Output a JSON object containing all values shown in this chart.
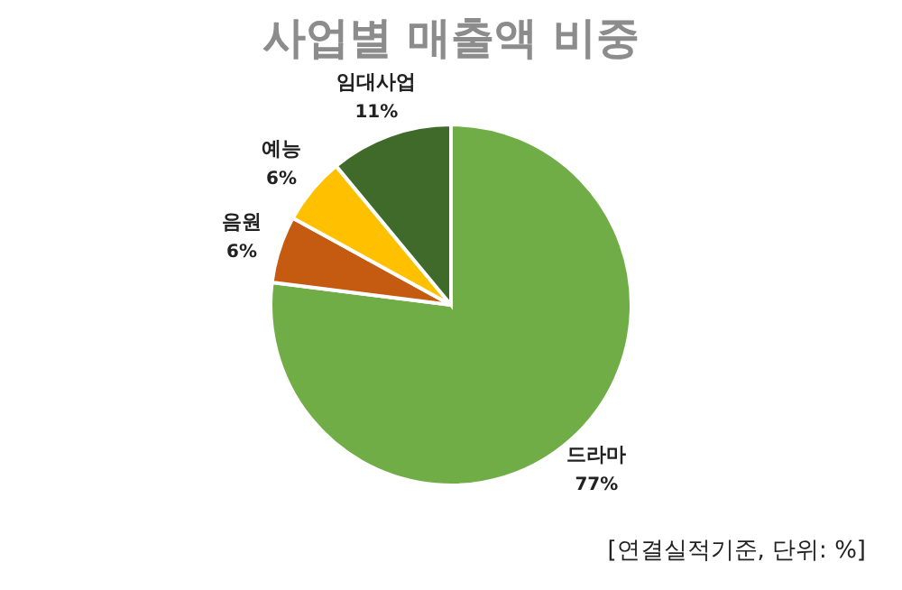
{
  "chart_data": {
    "type": "pie",
    "title": "사업별 매출액 비중",
    "categories": [
      "드라마",
      "음원",
      "예능",
      "임대사업"
    ],
    "values": [
      77,
      6,
      6,
      11
    ],
    "colors": [
      "#70ad47",
      "#c55a11",
      "#ffc000",
      "#3f6a2a"
    ],
    "value_labels": [
      "77%",
      "6%",
      "6%",
      "11%"
    ],
    "legend": false,
    "annotations": [
      "[연결실적기준, 단위:  %]"
    ]
  }
}
